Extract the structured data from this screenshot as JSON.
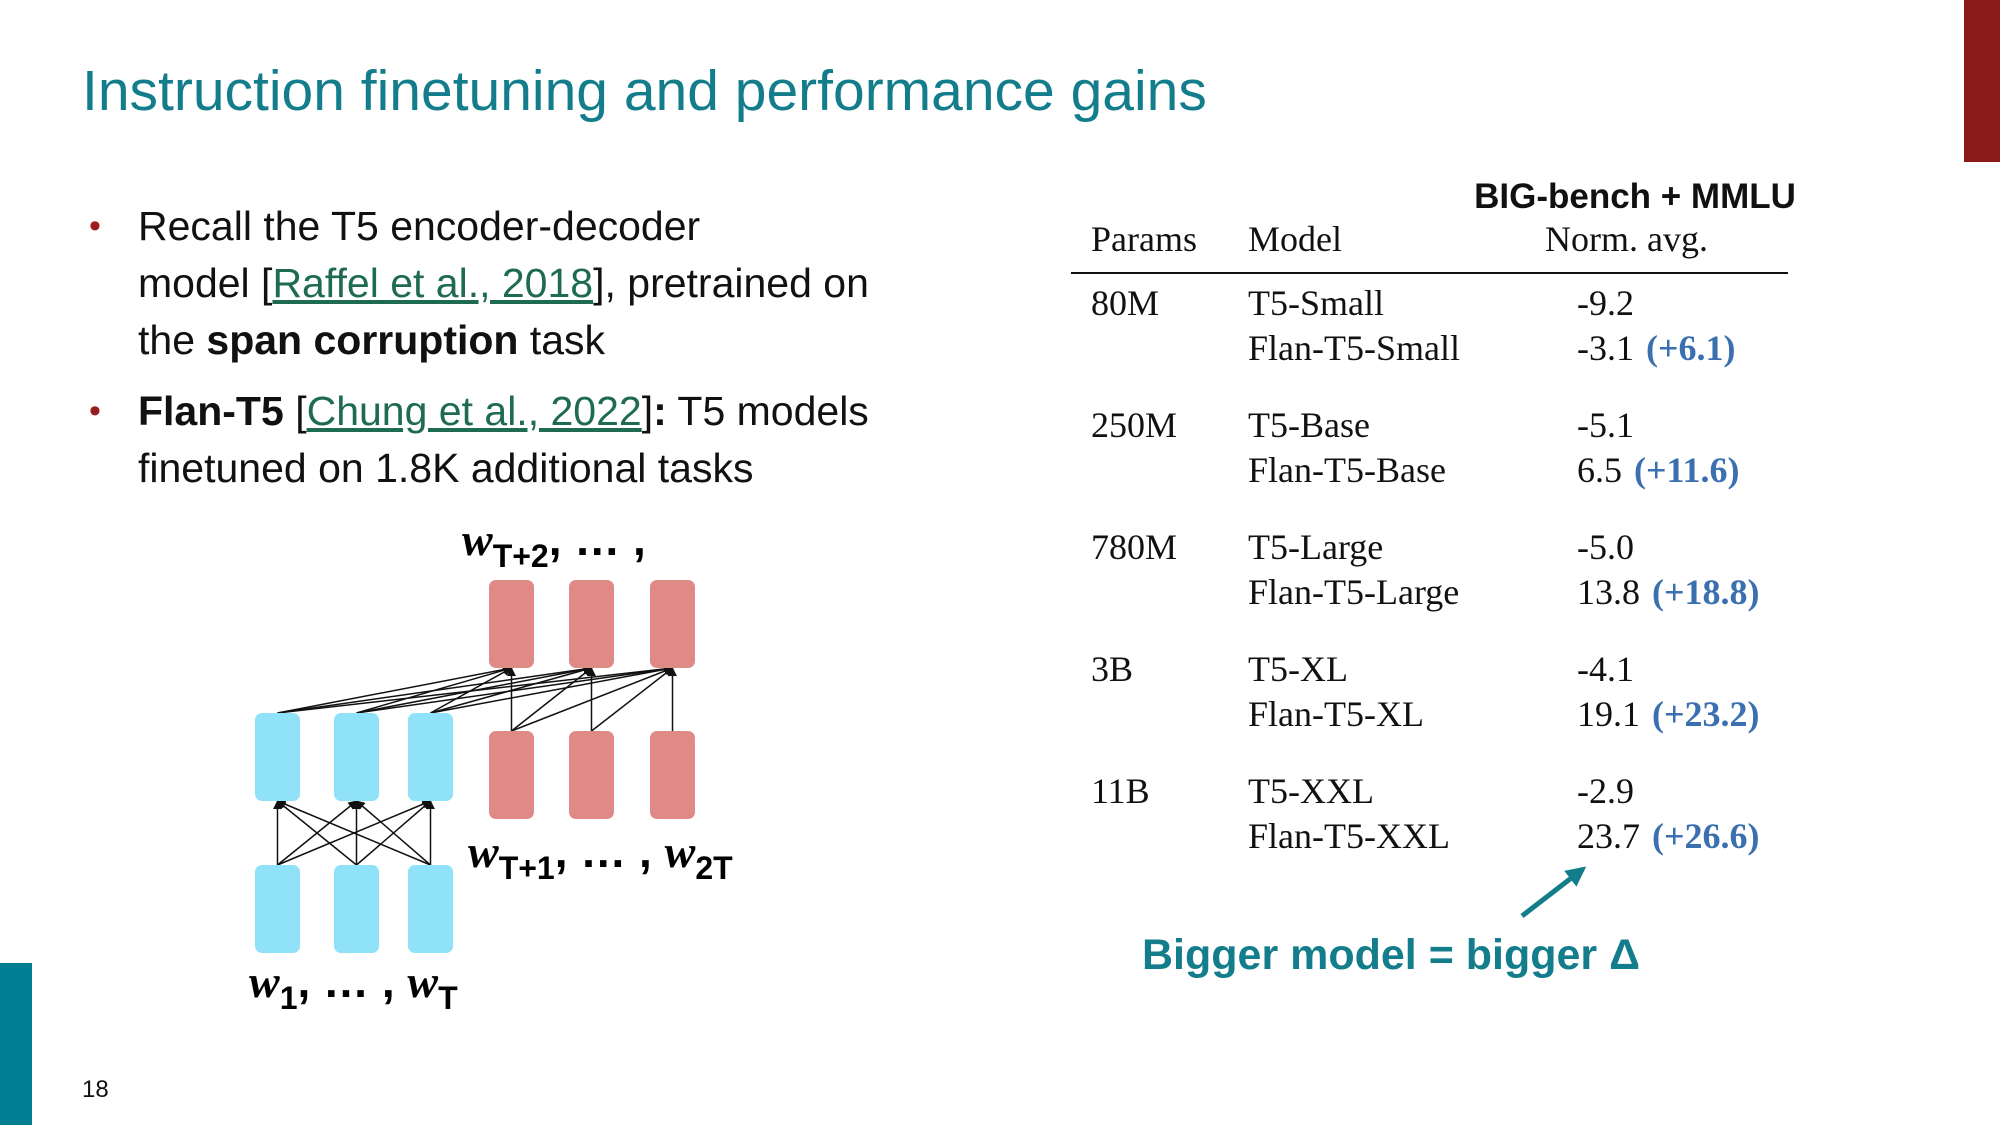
{
  "title": "Instruction finetuning and performance gains",
  "bullets": [
    {
      "parts": [
        "Recall the T5 encoder-decoder",
        "model [",
        "Raffel et al., 2018",
        "], pretrained on",
        "the ",
        "span corruption",
        " task"
      ]
    },
    {
      "parts": [
        "Flan-T5",
        " [",
        "Chung et al., 2022",
        "]",
        ":",
        " T5 models",
        "finetuned on 1.8K additional tasks"
      ]
    }
  ],
  "diagram": {
    "top_label": [
      {
        "text": "w"
      },
      {
        "sub": "T+2"
      },
      {
        "text": ", … ,"
      }
    ],
    "middle_label": [
      {
        "text": "w"
      },
      {
        "sub": "T+1"
      },
      {
        "text": ", … , "
      },
      {
        "text": "w"
      },
      {
        "sub": "2T"
      }
    ],
    "bottom_label": [
      {
        "text": "w"
      },
      {
        "sub": "1"
      },
      {
        "text": ", … , "
      },
      {
        "text": "w"
      },
      {
        "sub": "T"
      }
    ]
  },
  "table": {
    "group_header": "BIG-bench + MMLU",
    "columns": [
      "Params",
      "Model",
      "Norm. avg."
    ],
    "groups": [
      {
        "params": "80M",
        "rows": [
          {
            "model": "T5-Small",
            "score": "-9.2"
          },
          {
            "model": "Flan-T5-Small",
            "score": "-3.1",
            "gain": "(+6.1)"
          }
        ]
      },
      {
        "params": "250M",
        "rows": [
          {
            "model": "T5-Base",
            "score": "-5.1"
          },
          {
            "model": "Flan-T5-Base",
            "score": "6.5",
            "gain": "(+11.6)"
          }
        ]
      },
      {
        "params": "780M",
        "rows": [
          {
            "model": "T5-Large",
            "score": "-5.0"
          },
          {
            "model": "Flan-T5-Large",
            "score": "13.8",
            "gain": "(+18.8)"
          }
        ]
      },
      {
        "params": "3B",
        "rows": [
          {
            "model": "T5-XL",
            "score": "-4.1"
          },
          {
            "model": "Flan-T5-XL",
            "score": "19.1",
            "gain": "(+23.2)"
          }
        ]
      },
      {
        "params": "11B",
        "rows": [
          {
            "model": "T5-XXL",
            "score": "-2.9"
          },
          {
            "model": "Flan-T5-XXL",
            "score": "23.7",
            "gain": "(+26.6)"
          }
        ]
      }
    ]
  },
  "annotation": "Bigger model = bigger Δ",
  "page_number": "18"
}
